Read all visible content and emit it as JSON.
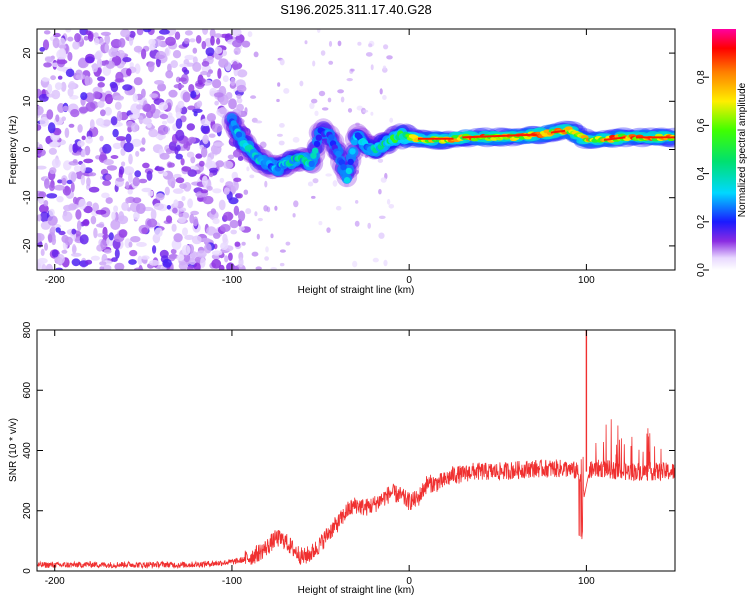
{
  "chart_data": [
    {
      "type": "heatmap",
      "title": "S196.2025.311.17.40.G28",
      "xlabel": "Height of straight line (km)",
      "ylabel": "Frequency (Hz)",
      "xlim": [
        -210,
        150
      ],
      "ylim": [
        -25,
        25
      ],
      "xticks": [
        -200,
        -100,
        0,
        100
      ],
      "yticks": [
        -20,
        -10,
        0,
        10,
        20
      ],
      "colorbar": {
        "label": "Normalized spectral amplitude",
        "range": [
          0,
          1
        ],
        "ticks": [
          0.0,
          0.2,
          0.4,
          0.6,
          0.8
        ],
        "tick_labels": [
          "0.0",
          "0.2",
          "0.4",
          "0.6",
          "0.8"
        ],
        "colormap": "rainbow (white-violet-blue-cyan-green-yellow-red-magenta)"
      },
      "ridge": {
        "x": [
          -100,
          -95,
          -90,
          -85,
          -80,
          -75,
          -70,
          -65,
          -60,
          -55,
          -50,
          -45,
          -40,
          -35,
          -30,
          -25,
          -20,
          -15,
          -10,
          -5,
          0,
          10,
          20,
          30,
          40,
          50,
          60,
          70,
          80,
          90,
          100,
          110,
          120,
          130,
          140,
          150
        ],
        "y": [
          6,
          2,
          0,
          -2,
          -3,
          -4,
          -3,
          -2,
          -2,
          -3,
          4,
          3,
          -1,
          -6,
          3,
          1,
          0,
          1,
          2,
          3,
          2.5,
          2,
          2,
          2.5,
          2.5,
          2.5,
          2.5,
          3,
          3.5,
          4,
          2,
          2,
          2.5,
          2.5,
          2.5,
          2.5
        ],
        "amplitude": [
          0.3,
          0.4,
          0.4,
          0.4,
          0.35,
          0.35,
          0.4,
          0.45,
          0.45,
          0.45,
          0.3,
          0.3,
          0.3,
          0.35,
          0.35,
          0.4,
          0.45,
          0.5,
          0.55,
          0.65,
          0.7,
          0.8,
          0.85,
          0.9,
          0.92,
          0.92,
          0.92,
          0.92,
          0.9,
          0.92,
          0.85,
          0.9,
          0.92,
          0.92,
          0.92,
          0.92
        ]
      },
      "noise_region": {
        "x_range": [
          -210,
          -100
        ],
        "amplitude": 0.1
      }
    },
    {
      "type": "line",
      "title": "",
      "xlabel": "Height of straight line (km)",
      "ylabel": "SNR (10 * v/v)",
      "xlim": [
        -210,
        150
      ],
      "ylim": [
        0,
        800
      ],
      "xticks": [
        -200,
        -100,
        0,
        100
      ],
      "yticks": [
        0,
        200,
        400,
        600,
        800
      ],
      "color": "#f03030",
      "series": [
        {
          "name": "SNR",
          "x": [
            -210,
            -200,
            -190,
            -180,
            -170,
            -160,
            -150,
            -140,
            -130,
            -120,
            -110,
            -100,
            -95,
            -90,
            -85,
            -80,
            -75,
            -70,
            -65,
            -60,
            -55,
            -50,
            -45,
            -40,
            -35,
            -30,
            -25,
            -20,
            -15,
            -10,
            -5,
            0,
            5,
            10,
            15,
            20,
            25,
            30,
            35,
            40,
            50,
            60,
            70,
            80,
            90,
            95,
            99,
            100,
            101,
            105,
            110,
            120,
            130,
            140,
            150
          ],
          "y": [
            20,
            20,
            20,
            22,
            20,
            22,
            20,
            22,
            20,
            22,
            25,
            30,
            35,
            45,
            60,
            80,
            110,
            100,
            70,
            45,
            60,
            90,
            130,
            160,
            200,
            220,
            210,
            220,
            240,
            260,
            250,
            230,
            240,
            290,
            290,
            300,
            320,
            320,
            330,
            330,
            330,
            335,
            340,
            340,
            340,
            330,
            250,
            800,
            330,
            340,
            340,
            330,
            330,
            330,
            330
          ]
        }
      ],
      "spike": {
        "x": 100,
        "y": 800
      }
    }
  ]
}
